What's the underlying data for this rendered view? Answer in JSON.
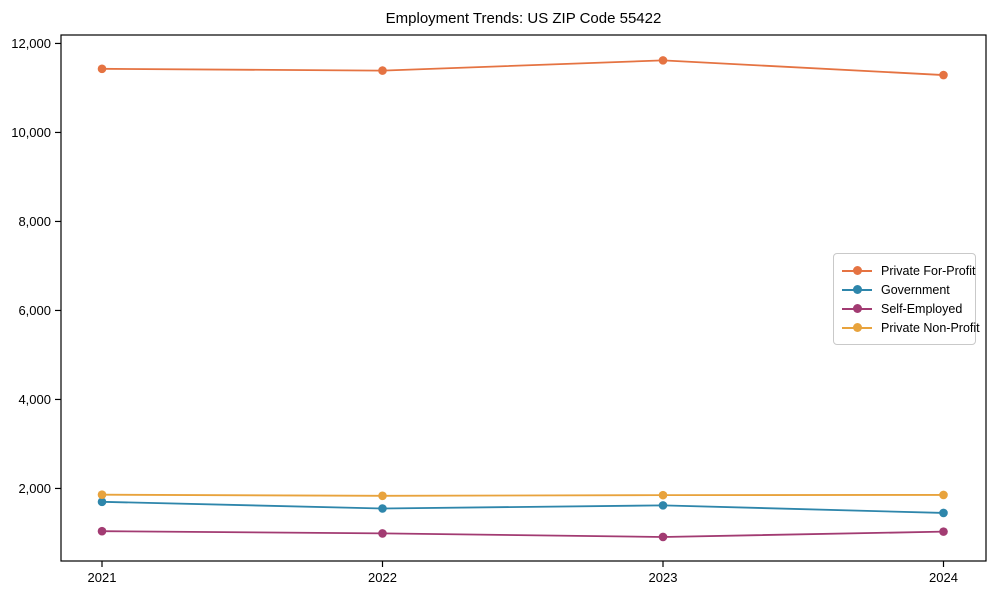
{
  "chart_data": {
    "type": "line",
    "title": "Employment Trends: US ZIP Code 55422",
    "xlabel": "",
    "ylabel": "",
    "categories": [
      "2021",
      "2022",
      "2023",
      "2024"
    ],
    "series": [
      {
        "name": "Private For-Profit",
        "color": "#E57342",
        "values": [
          11430,
          11390,
          11620,
          11290
        ]
      },
      {
        "name": "Government",
        "color": "#2E86AB",
        "values": [
          1700,
          1550,
          1620,
          1450
        ]
      },
      {
        "name": "Self-Employed",
        "color": "#A23B72",
        "values": [
          1040,
          990,
          910,
          1030
        ]
      },
      {
        "name": "Private Non-Profit",
        "color": "#E8A33D",
        "values": [
          1860,
          1835,
          1850,
          1855
        ]
      }
    ],
    "y_ticks": [
      2000,
      4000,
      6000,
      8000,
      10000,
      12000
    ],
    "ylim": [
      370,
      12190
    ],
    "grid": false,
    "legend_position": "center-right",
    "marker": "circle",
    "spine_color": "#000000"
  }
}
